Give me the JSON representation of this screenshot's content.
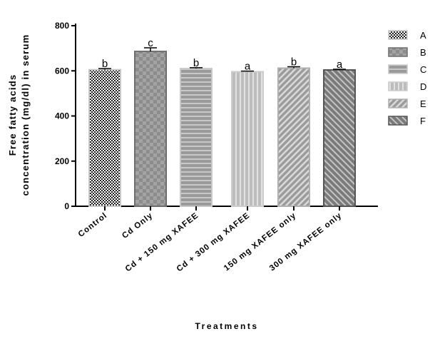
{
  "chart_data": {
    "type": "bar",
    "categories": [
      "Control",
      "Cd Only",
      "Cd + 150 mg XAFEE",
      "Cd + 300 mg XAFEE",
      "150 mg XAFEE only",
      "300 mg XAFEE only"
    ],
    "values": [
      605,
      686,
      610,
      596,
      612,
      604
    ],
    "error": [
      5,
      16,
      4,
      3,
      6,
      3
    ],
    "significance": [
      "b",
      "c",
      "b",
      "a",
      "b",
      "a"
    ],
    "legend": [
      "A",
      "B",
      "C",
      "D",
      "E",
      "F"
    ],
    "legend_position": "right",
    "xlabel": "Treatments",
    "ylabel_line1": "Free fatty acids",
    "ylabel_line2": "concentration (mg/dl) in serum",
    "ylim": [
      0,
      800
    ],
    "yticks": [
      0,
      200,
      400,
      600,
      800
    ],
    "grid": false
  }
}
